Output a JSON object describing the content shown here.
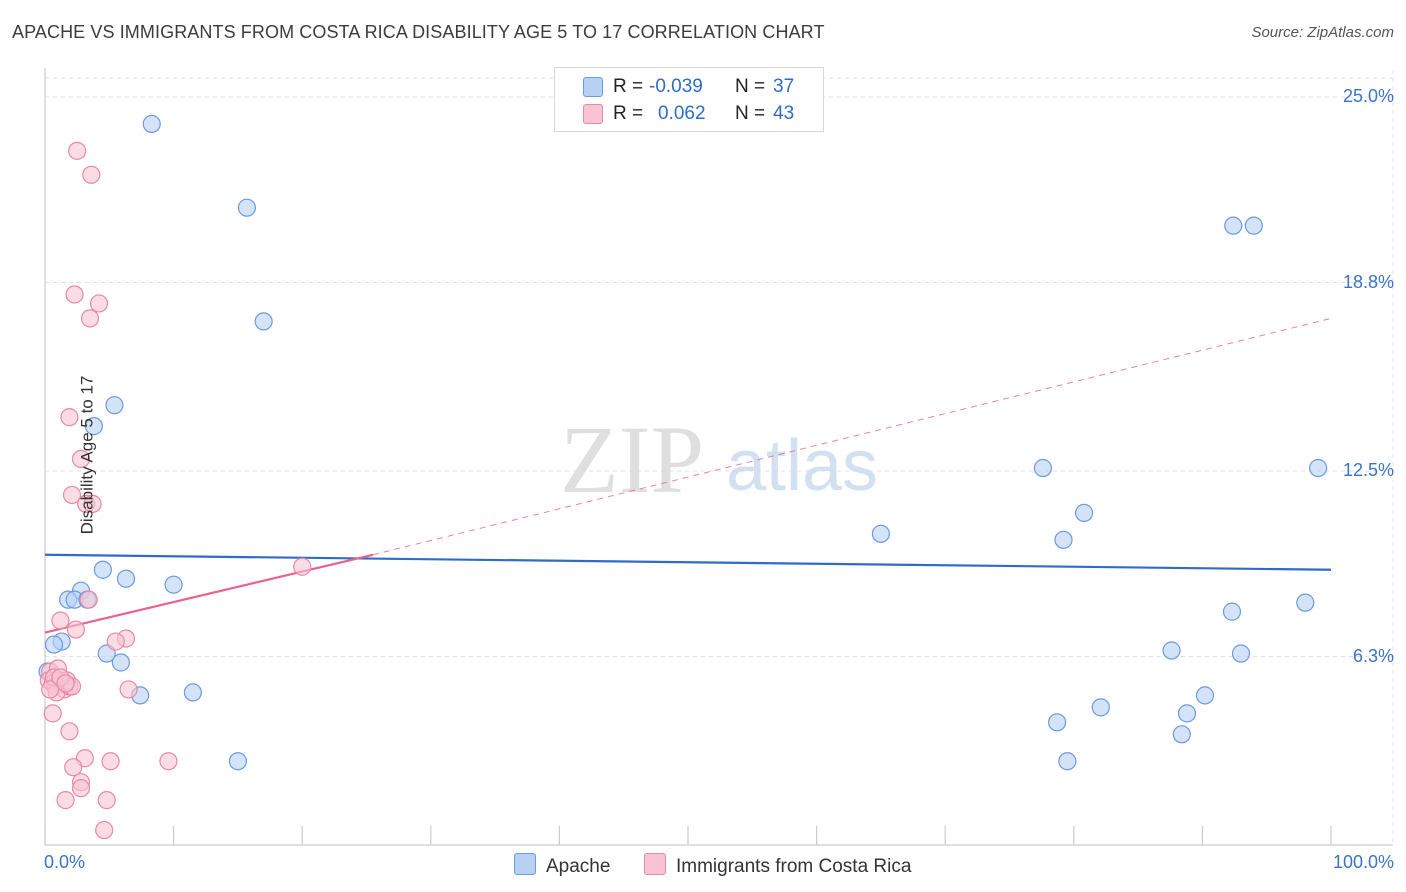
{
  "header": {
    "title": "APACHE VS IMMIGRANTS FROM COSTA RICA DISABILITY AGE 5 TO 17 CORRELATION CHART",
    "source": "Source: ZipAtlas.com"
  },
  "watermark": {
    "zip": "ZIP",
    "atlas": "atlas"
  },
  "legend": {
    "rows": [
      {
        "r_label": "R =",
        "r_value": "-0.039",
        "n_label": "N =",
        "n_value": "37"
      },
      {
        "r_label": "R =",
        "r_value": "0.062",
        "n_label": "N =",
        "n_value": "43"
      }
    ]
  },
  "colors": {
    "apache_fill": "#b8d1f3",
    "apache_stroke": "#6a9be0",
    "apache_line": "#2f6cc9",
    "cr_fill": "#f8c4d3",
    "cr_stroke": "#e889a7",
    "cr_line": "#e8628e",
    "grid": "#e2e2e2",
    "tick_text": "#3a74c8"
  },
  "chart_data": {
    "type": "scatter",
    "title": "APACHE VS IMMIGRANTS FROM COSTA RICA DISABILITY AGE 5 TO 17 CORRELATION CHART",
    "ylabel": "Disability Age 5 to 17",
    "xlabel": "",
    "xlim": [
      0,
      100
    ],
    "ylim": [
      0,
      25.5
    ],
    "x_tick_labels": [
      "0.0%",
      "100.0%"
    ],
    "y_ticks": [
      {
        "value": 6.3,
        "label": "6.3%"
      },
      {
        "value": 12.5,
        "label": "12.5%"
      },
      {
        "value": 18.8,
        "label": "18.8%"
      },
      {
        "value": 25.0,
        "label": "25.0%"
      }
    ],
    "legend_position": "bottom",
    "series": [
      {
        "name": "Apache",
        "color": "#b8d1f3",
        "r": -0.039,
        "n": 37,
        "trend": {
          "x": [
            0,
            100
          ],
          "y": [
            9.7,
            9.2
          ]
        },
        "points": [
          [
            8.3,
            24.1
          ],
          [
            15.7,
            21.3
          ],
          [
            17.0,
            17.5
          ],
          [
            5.4,
            14.7
          ],
          [
            3.8,
            14.0
          ],
          [
            4.5,
            9.2
          ],
          [
            6.3,
            8.9
          ],
          [
            10.0,
            8.7
          ],
          [
            2.8,
            8.5
          ],
          [
            1.8,
            8.2
          ],
          [
            2.3,
            8.2
          ],
          [
            3.3,
            8.2
          ],
          [
            1.3,
            6.8
          ],
          [
            0.7,
            6.7
          ],
          [
            4.8,
            6.4
          ],
          [
            5.9,
            6.1
          ],
          [
            7.4,
            5.0
          ],
          [
            11.5,
            5.1
          ],
          [
            15.0,
            2.8
          ],
          [
            0.2,
            5.8
          ],
          [
            65.0,
            10.4
          ],
          [
            77.6,
            12.6
          ],
          [
            80.8,
            11.1
          ],
          [
            79.2,
            10.2
          ],
          [
            92.4,
            20.7
          ],
          [
            94.0,
            20.7
          ],
          [
            99.0,
            12.6
          ],
          [
            98.0,
            8.1
          ],
          [
            92.3,
            7.8
          ],
          [
            87.6,
            6.5
          ],
          [
            93.0,
            6.4
          ],
          [
            90.2,
            5.0
          ],
          [
            78.7,
            4.1
          ],
          [
            82.1,
            4.6
          ],
          [
            88.8,
            4.4
          ],
          [
            88.4,
            3.7
          ],
          [
            79.5,
            2.8
          ]
        ]
      },
      {
        "name": "Immigrants from Costa Rica",
        "color": "#f8c4d3",
        "r": 0.062,
        "n": 43,
        "trend": {
          "x": [
            0,
            25.5
          ],
          "y": [
            7.1,
            9.7
          ]
        },
        "trend_extension": {
          "x": [
            25.5,
            100
          ],
          "y": [
            9.7,
            17.6
          ]
        },
        "points": [
          [
            2.5,
            23.2
          ],
          [
            3.6,
            22.4
          ],
          [
            2.3,
            18.4
          ],
          [
            4.2,
            18.1
          ],
          [
            3.5,
            17.6
          ],
          [
            1.9,
            14.3
          ],
          [
            2.8,
            12.9
          ],
          [
            2.1,
            11.7
          ],
          [
            3.2,
            11.4
          ],
          [
            3.7,
            11.4
          ],
          [
            3.4,
            8.2
          ],
          [
            20.0,
            9.3
          ],
          [
            1.2,
            7.5
          ],
          [
            2.4,
            7.2
          ],
          [
            6.3,
            6.9
          ],
          [
            5.5,
            6.8
          ],
          [
            0.4,
            5.8
          ],
          [
            1.0,
            5.9
          ],
          [
            0.3,
            5.5
          ],
          [
            0.6,
            5.4
          ],
          [
            1.2,
            5.5
          ],
          [
            0.8,
            5.3
          ],
          [
            1.5,
            5.2
          ],
          [
            0.9,
            5.1
          ],
          [
            1.9,
            5.3
          ],
          [
            1.7,
            5.5
          ],
          [
            2.1,
            5.3
          ],
          [
            0.7,
            5.6
          ],
          [
            0.4,
            5.2
          ],
          [
            0.6,
            4.4
          ],
          [
            6.5,
            5.2
          ],
          [
            1.9,
            3.8
          ],
          [
            3.1,
            2.9
          ],
          [
            5.1,
            2.8
          ],
          [
            9.6,
            2.8
          ],
          [
            2.2,
            2.6
          ],
          [
            2.8,
            2.1
          ],
          [
            2.8,
            1.9
          ],
          [
            1.6,
            1.5
          ],
          [
            4.8,
            1.5
          ],
          [
            4.6,
            0.5
          ],
          [
            1.2,
            5.6
          ],
          [
            1.6,
            5.4
          ]
        ]
      }
    ]
  }
}
